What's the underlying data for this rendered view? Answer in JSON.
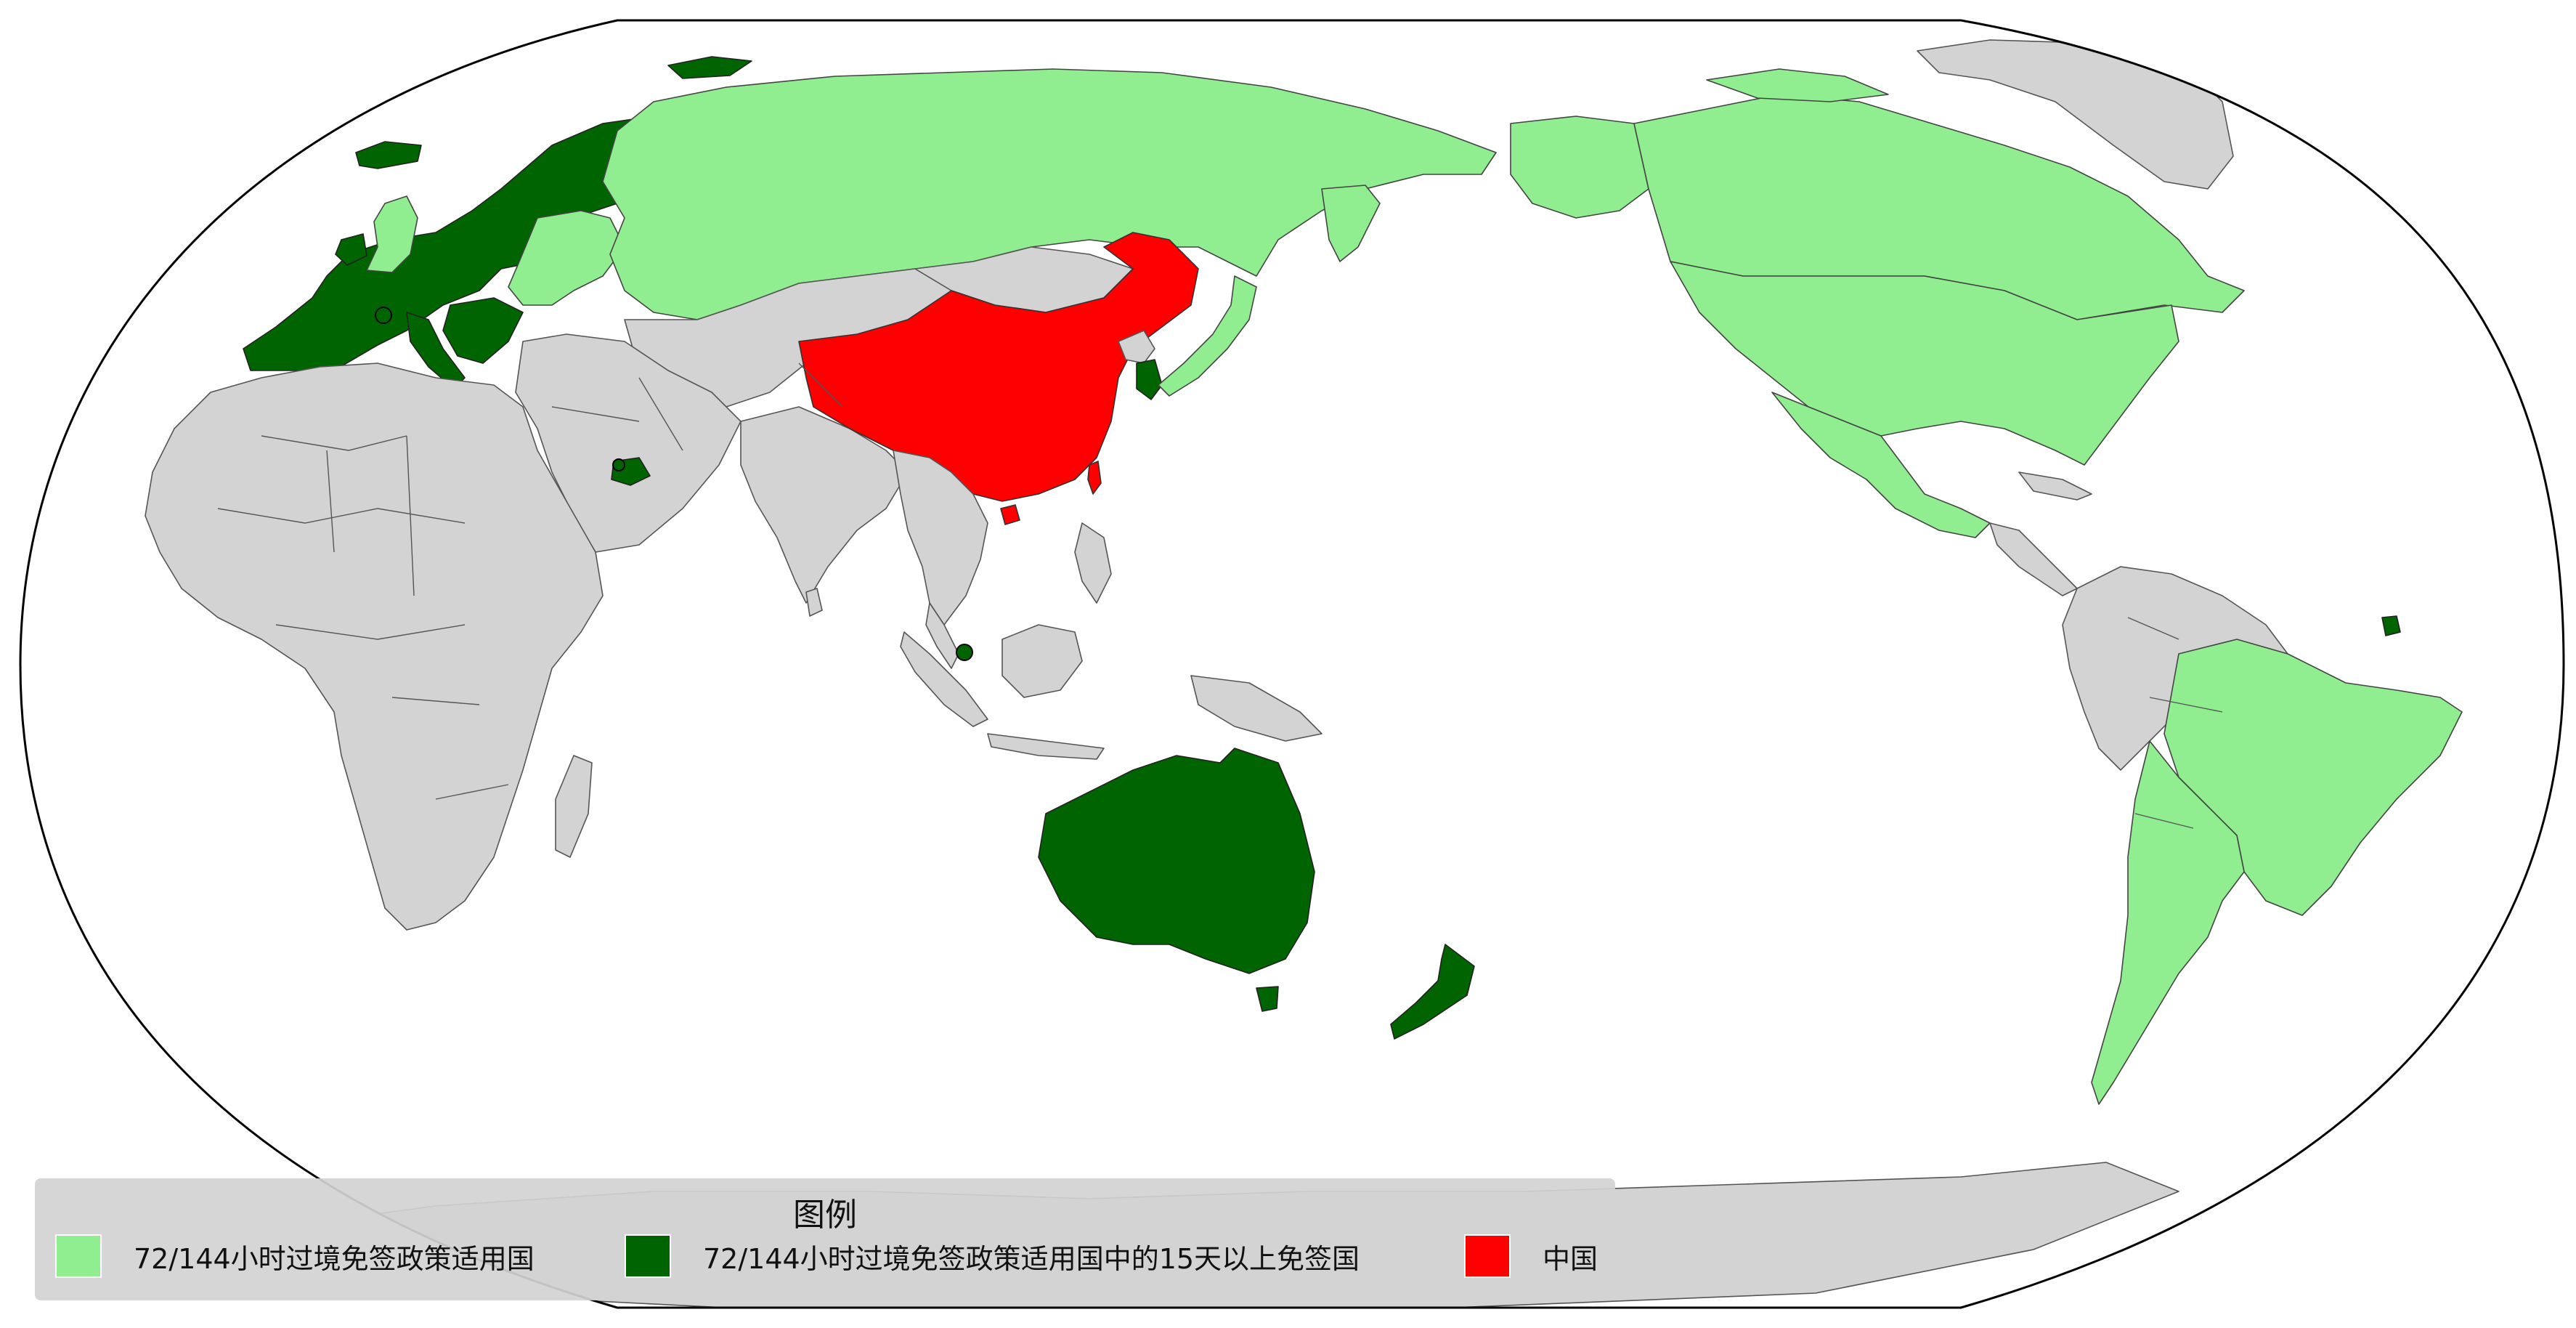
{
  "colors": {
    "light_green": "#90ee90",
    "dark_green": "#006400",
    "china_red": "#ff0000",
    "other_grey": "#d3d3d3",
    "ocean": "#ffffff"
  },
  "legend": {
    "title": "图例",
    "items": [
      {
        "label": "72/144小时过境免签政策适用国",
        "color": "#90ee90"
      },
      {
        "label": "72/144小时过境免签政策适用国中的15天以上免签国",
        "color": "#006400"
      },
      {
        "label": "中国",
        "color": "#ff0000"
      }
    ]
  }
}
